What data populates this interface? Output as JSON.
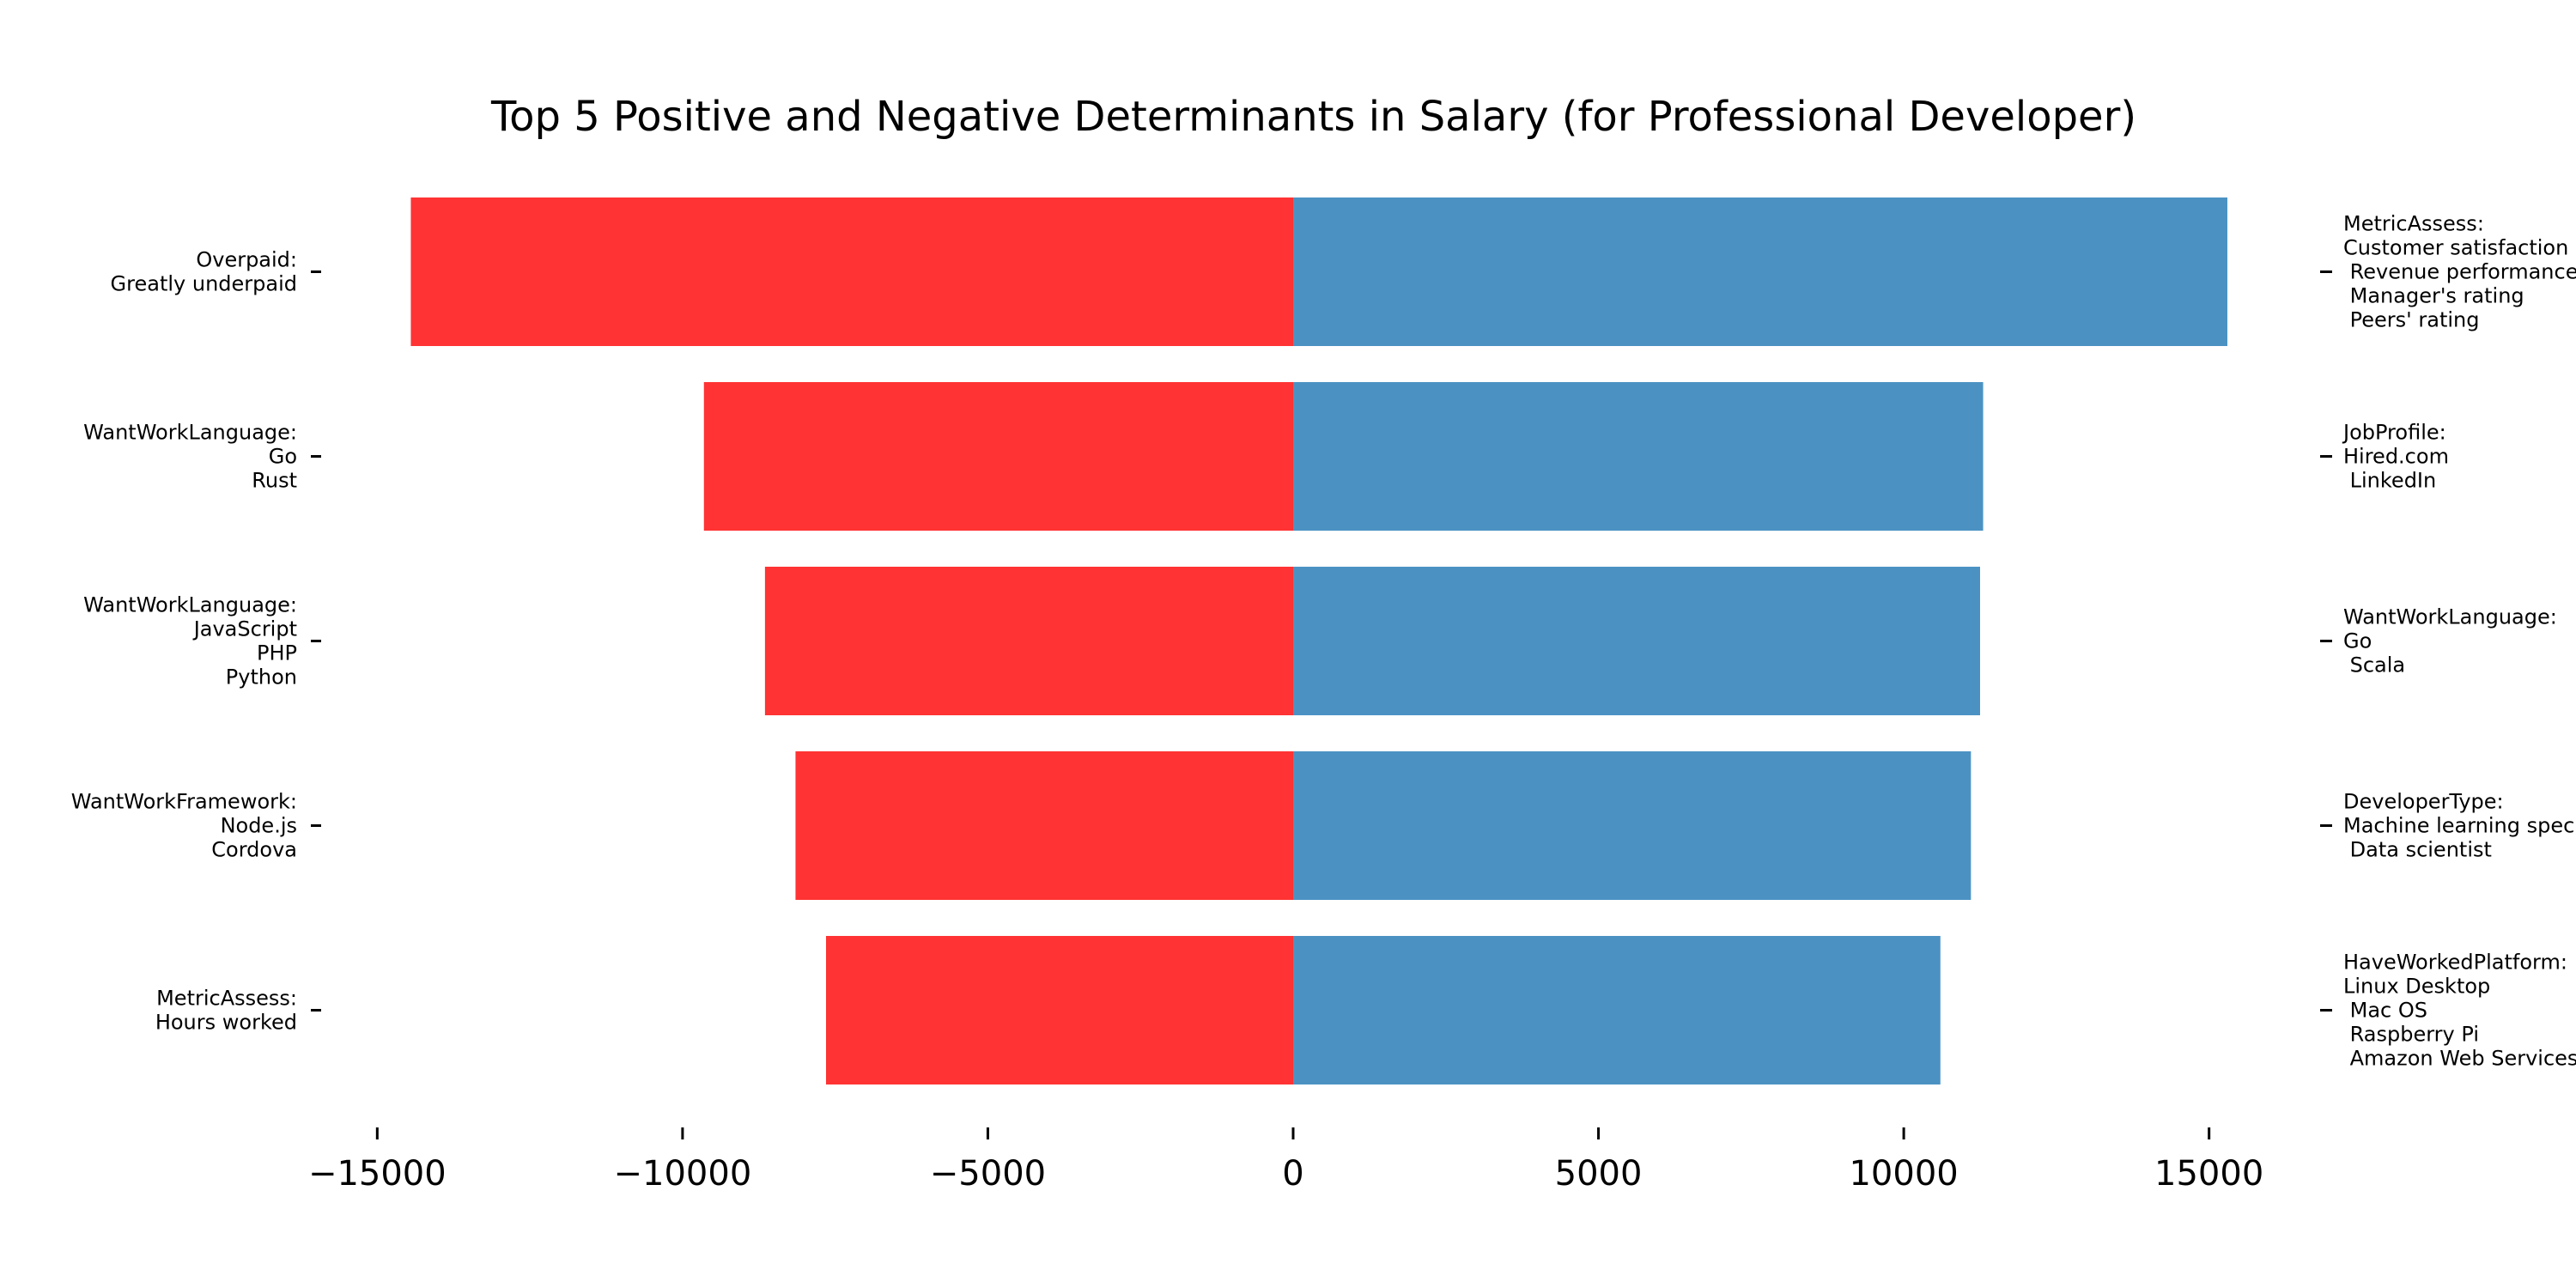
{
  "chart_data": {
    "type": "bar",
    "orientation": "horizontal",
    "title": "Top 5 Positive and Negative Determinants in Salary (for Professional Developer)",
    "xlabel": "",
    "ylabel": "",
    "xlim": [
      -16000,
      16500
    ],
    "xticks": [
      -15000,
      -10000,
      -5000,
      0,
      5000,
      10000,
      15000
    ],
    "xtick_labels": [
      "−15000",
      "−10000",
      "−5000",
      "0",
      "5000",
      "10000",
      "15000"
    ],
    "grid": false,
    "legend": "none",
    "series": [
      {
        "color": "#ff3333",
        "values": [
          -14450,
          -9650,
          -8650,
          -8150,
          -7650
        ],
        "labels": [
          "Overpaid:\nGreatly underpaid",
          "WantWorkLanguage:\nGo\nRust",
          "WantWorkLanguage:\nJavaScript\nPHP\nPython",
          "WantWorkFramework:\nNode.js\nCordova",
          "MetricAssess:\nHours worked"
        ]
      },
      {
        "color": "#4b92c3",
        "values": [
          15300,
          11300,
          11250,
          11100,
          10600
        ],
        "labels": [
          "MetricAssess:\nCustomer satisfaction\n Revenue performance\n Manager's rating\n Peers' rating",
          "JobProfile:\nHired.com\n LinkedIn",
          "WantWorkLanguage:\nGo\n Scala",
          "DeveloperType:\nMachine learning specialist\n Data scientist",
          "HaveWorkedPlatform:\nLinux Desktop\n Mac OS\n Raspberry Pi\n Amazon Web Services (AWS)"
        ]
      }
    ]
  }
}
